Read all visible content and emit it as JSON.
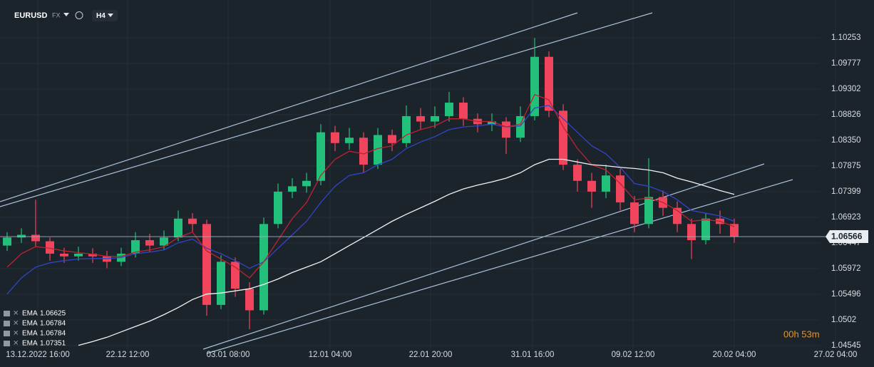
{
  "chart_data": {
    "type": "candlestick",
    "symbol": "EURUSD",
    "market": "FX",
    "timeframe": "H4",
    "timer": "00h 53m",
    "x": [
      0.5,
      1.5,
      2.5,
      3.5,
      4.5,
      5.5,
      6.5,
      7.5,
      8.5,
      9.5,
      10.5,
      11.5,
      12.5,
      13.5,
      14.5,
      15.5,
      16.5,
      17.5,
      18.5,
      19.5,
      20.5,
      21.5,
      22.5,
      23.5,
      24.5,
      25.5,
      26.5,
      27.5,
      28.5,
      29.5,
      30.5,
      31.5,
      32.5,
      33.5,
      34.5,
      35.5,
      36.5,
      37.5,
      38.5,
      39.5,
      40.5,
      41.5,
      42.5,
      43.5,
      44.5,
      45.5,
      46.5,
      47.5,
      48.5,
      49.5,
      50.5,
      51.5
    ],
    "open": [
      1.064,
      1.0655,
      1.066,
      1.0648,
      1.0625,
      1.062,
      1.0625,
      1.062,
      1.061,
      1.0625,
      1.065,
      1.064,
      1.0655,
      1.069,
      1.068,
      1.053,
      1.061,
      1.056,
      1.052,
      1.068,
      1.074,
      1.075,
      1.076,
      1.085,
      1.083,
      1.084,
      1.079,
      1.0845,
      1.083,
      1.088,
      1.087,
      1.088,
      1.0905,
      1.0875,
      1.0865,
      1.087,
      1.084,
      1.088,
      1.099,
      1.089,
      1.079,
      1.076,
      1.074,
      1.077,
      1.072,
      1.068,
      1.073,
      1.071,
      1.068,
      1.065,
      1.069,
      1.068
    ],
    "high": [
      1.0665,
      1.0672,
      1.0725,
      1.0655,
      1.0636,
      1.0638,
      1.0635,
      1.063,
      1.0636,
      1.0665,
      1.0662,
      1.0668,
      1.0705,
      1.07,
      1.0688,
      1.0622,
      1.0618,
      1.0572,
      1.0692,
      1.0755,
      1.0765,
      1.0775,
      1.0865,
      1.0862,
      1.0858,
      1.085,
      1.0858,
      1.0855,
      1.09,
      1.0895,
      1.0898,
      1.0925,
      1.0915,
      1.0885,
      1.0885,
      1.0878,
      1.0898,
      1.1025,
      1.1,
      1.0902,
      1.08,
      1.0775,
      1.079,
      1.0782,
      1.0732,
      1.0802,
      1.0742,
      1.0722,
      1.069,
      1.07,
      1.0705,
      1.069
    ],
    "low": [
      1.063,
      1.0645,
      1.0638,
      1.0612,
      1.0608,
      1.0612,
      1.0608,
      1.0598,
      1.0602,
      1.0618,
      1.0628,
      1.0632,
      1.0648,
      1.0665,
      1.051,
      1.0522,
      1.0545,
      1.0485,
      1.0512,
      1.0672,
      1.0728,
      1.0738,
      1.0752,
      1.0815,
      1.0818,
      1.0775,
      1.0782,
      1.0815,
      1.0822,
      1.0855,
      1.0858,
      1.087,
      1.0862,
      1.085,
      1.0852,
      1.081,
      1.0832,
      1.0872,
      1.0878,
      1.078,
      1.074,
      1.071,
      1.0728,
      1.0705,
      1.0665,
      1.0672,
      1.0695,
      1.0665,
      1.0615,
      1.0642,
      1.0662,
      1.0645
    ],
    "close": [
      1.0655,
      1.066,
      1.0648,
      1.0625,
      1.062,
      1.0625,
      1.062,
      1.061,
      1.0625,
      1.065,
      1.064,
      1.0655,
      1.069,
      1.068,
      1.053,
      1.061,
      1.056,
      1.052,
      1.068,
      1.074,
      1.075,
      1.076,
      1.085,
      1.083,
      1.084,
      1.079,
      1.0845,
      1.083,
      1.088,
      1.087,
      1.088,
      1.0905,
      1.0875,
      1.0865,
      1.087,
      1.084,
      1.088,
      1.099,
      1.089,
      1.079,
      1.076,
      1.074,
      1.077,
      1.072,
      1.068,
      1.073,
      1.071,
      1.068,
      1.065,
      1.069,
      1.068,
      1.06566
    ],
    "up_color": "#22c07a",
    "down_color": "#f0455c",
    "series": [
      {
        "color": "#3145c8",
        "values": [
          1.055,
          1.058,
          1.06,
          1.0608,
          1.0612,
          1.0615,
          1.0616,
          1.0616,
          1.0618,
          1.0625,
          1.0628,
          1.0632,
          1.0645,
          1.0652,
          1.0635,
          1.0625,
          1.0612,
          1.0598,
          1.061,
          1.0635,
          1.066,
          1.0685,
          1.072,
          1.075,
          1.077,
          1.0775,
          1.079,
          1.08,
          1.082,
          1.0832,
          1.0842,
          1.0855,
          1.086,
          1.0862,
          1.0865,
          1.086,
          1.0862,
          1.0895,
          1.09,
          1.0875,
          1.085,
          1.0825,
          1.081,
          1.0785,
          1.0755,
          1.075,
          1.074,
          1.0725,
          1.0705,
          1.07,
          1.0695,
          1.0685
        ]
      },
      {
        "color": "#c0222e",
        "values": [
          1.06,
          1.0625,
          1.0638,
          1.0635,
          1.063,
          1.0627,
          1.0624,
          1.062,
          1.062,
          1.0628,
          1.0632,
          1.0638,
          1.0655,
          1.0665,
          1.063,
          1.0615,
          1.06,
          1.058,
          1.061,
          1.065,
          1.069,
          1.072,
          1.077,
          1.08,
          1.0815,
          1.081,
          1.082,
          1.0825,
          1.0845,
          1.0855,
          1.0862,
          1.0875,
          1.0875,
          1.087,
          1.087,
          1.086,
          1.0865,
          1.092,
          1.091,
          1.086,
          1.082,
          1.079,
          1.078,
          1.0755,
          1.0725,
          1.0728,
          1.072,
          1.0705,
          1.0685,
          1.0688,
          1.0685,
          1.0675
        ]
      },
      {
        "color": "#f2f2f2",
        "values": [
          null,
          null,
          null,
          null,
          null,
          1.0455,
          1.0462,
          1.047,
          1.048,
          1.049,
          1.05,
          1.0512,
          1.0525,
          1.054,
          1.055,
          1.0552,
          1.0556,
          1.056,
          1.0568,
          1.0578,
          1.059,
          1.06,
          1.061,
          1.0625,
          1.064,
          1.0655,
          1.067,
          1.0685,
          1.0698,
          1.071,
          1.0722,
          1.0735,
          1.0745,
          1.0752,
          1.0758,
          1.0765,
          1.0775,
          1.079,
          1.08,
          1.08,
          1.0795,
          1.079,
          1.0788,
          1.0785,
          1.0783,
          1.078,
          1.0775,
          1.0765,
          1.0758,
          1.075,
          1.0742,
          1.0735
        ]
      }
    ],
    "legend": [
      {
        "name": "EMA",
        "value": 1.06625
      },
      {
        "name": "EMA",
        "value": 1.06784
      },
      {
        "name": "EMA",
        "value": 1.06784
      },
      {
        "name": "EMA",
        "value": 1.07351
      }
    ],
    "current_price": 1.06566,
    "xlim": [
      0,
      61.3
    ],
    "ylim": [
      1.04479,
      1.10953
    ],
    "xticks": [
      {
        "value": 2.65,
        "label": "13.12.2022 16:00"
      },
      {
        "value": 8.95,
        "label": "22.12 12:00"
      },
      {
        "value": 16,
        "label": "03.01 08:00"
      },
      {
        "value": 23.15,
        "label": "12.01 04:00"
      },
      {
        "value": 30.2,
        "label": "22.01 20:00"
      },
      {
        "value": 37.35,
        "label": "31.01 16:00"
      },
      {
        "value": 44.4,
        "label": "09.02 12:00"
      },
      {
        "value": 51.5,
        "label": "20.02 04:00"
      },
      {
        "value": 58.6,
        "label": "27.02 04:00"
      }
    ],
    "yticks": [
      1.10253,
      1.09777,
      1.09302,
      1.08826,
      {
        "value": 1.0835,
        "label": "1.08350"
      },
      1.07875,
      1.07399,
      1.06923,
      1.06447,
      1.05972,
      1.05496,
      1.0502,
      1.04545
    ],
    "grid": true
  }
}
